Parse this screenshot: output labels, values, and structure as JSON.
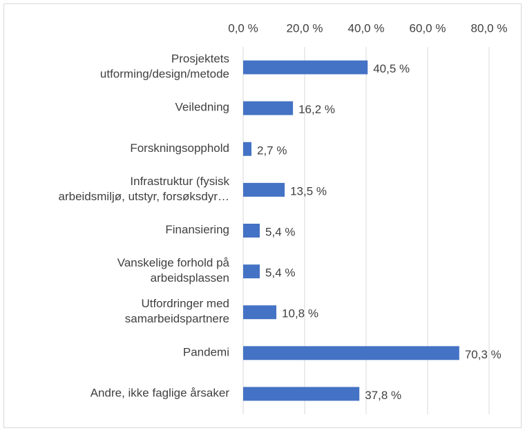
{
  "chart_data": {
    "type": "bar",
    "orientation": "horizontal",
    "categories": [
      "Prosjektets\nutforming/design/metode",
      "Veiledning",
      "Forskningsopphold",
      "Infrastruktur (fysisk\narbeidsmiljø, utstyr, forsøksdyr…",
      "Finansiering",
      "Vanskelige forhold på\narbeidsplassen",
      "Utfordringer med\nsamarbeidspartnere",
      "Pandemi",
      "Andre, ikke faglige årsaker"
    ],
    "values": [
      40.5,
      16.2,
      2.7,
      13.5,
      5.4,
      5.4,
      10.8,
      70.3,
      37.8
    ],
    "value_labels": [
      "40,5 %",
      "16,2 %",
      "2,7 %",
      "13,5 %",
      "5,4 %",
      "5,4 %",
      "10,8 %",
      "70,3 %",
      "37,8 %"
    ],
    "color": "#4472c4",
    "xlim": [
      0,
      80
    ],
    "xticks": [
      {
        "value": 0,
        "label": "0,0 %"
      },
      {
        "value": 20,
        "label": "20,0 %"
      },
      {
        "value": 40,
        "label": "40,0 %"
      },
      {
        "value": 60,
        "label": "60,0 %"
      },
      {
        "value": 80,
        "label": "80,0 %"
      }
    ],
    "grid": true
  }
}
